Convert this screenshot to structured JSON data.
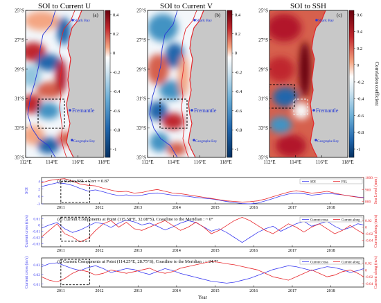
{
  "maps": {
    "titles": [
      "SOI to Current U",
      "SOI to Current V",
      "SOI to SSH"
    ],
    "panel_letters": [
      "(a)",
      "(b)",
      "(c)"
    ],
    "lat_ticks": [
      "25°S",
      "27°S",
      "29°S",
      "31°S",
      "33°S",
      "35°S"
    ],
    "lon_ticks": [
      "112°E",
      "114°E",
      "116°E",
      "118°E"
    ],
    "places": {
      "shark_bay": "Shark Bay",
      "fremantle": "Fremantle",
      "geographe_bay": "Geographe Bay"
    },
    "colorbar_ticks_uv": [
      "0.4",
      "0.2",
      "0",
      "-0.2",
      "-0.4",
      "-0.6",
      "-0.8",
      "-1"
    ],
    "colorbar_ticks_ssh": [
      "0.6",
      "0.4",
      "0.2",
      "0",
      "-0.2",
      "-0.4",
      "-0.6",
      "-0.8",
      "-1"
    ],
    "colorbar_label": "Correlation coefficient",
    "colors": {
      "positive": "#a50f15",
      "negative": "#08519c",
      "land": "#c8c8c8",
      "coast": "#e3262b",
      "isobath": "#2b3ad6"
    }
  },
  "chart_data": [
    {
      "type": "line",
      "panel": "(d)",
      "title": "(d)  SOI to FSL : Corr = 0.87",
      "ylabel": "SOI",
      "y2label": "Sea Level (mm)",
      "ylim": [
        -2,
        5
      ],
      "yticks": [
        -2,
        0,
        2,
        4
      ],
      "y2lim": [
        780,
        1000
      ],
      "y2ticks": [
        800,
        900,
        1000
      ],
      "x_ticks": [
        "2011",
        "2012",
        "2013",
        "2014",
        "2015",
        "2016",
        "2017",
        "2018"
      ],
      "xlim": [
        2010.5,
        2018.85
      ],
      "series": [
        {
          "name": "SOI",
          "color": "#3a3af0",
          "x": [
            2010.5,
            2010.7,
            2010.9,
            2011.1,
            2011.3,
            2011.5,
            2011.7,
            2011.9,
            2012.1,
            2012.3,
            2012.5,
            2012.7,
            2012.9,
            2013.1,
            2013.3,
            2013.5,
            2013.7,
            2013.9,
            2014.1,
            2014.3,
            2014.5,
            2014.7,
            2014.9,
            2015.1,
            2015.3,
            2015.5,
            2015.7,
            2015.9,
            2016.1,
            2016.3,
            2016.5,
            2016.7,
            2016.9,
            2017.1,
            2017.3,
            2017.5,
            2017.7,
            2017.9,
            2018.1,
            2018.3,
            2018.5,
            2018.7,
            2018.85
          ],
          "values": [
            2.6,
            3.1,
            3.6,
            3.4,
            2.9,
            2.1,
            1.4,
            1.7,
            1.2,
            0.6,
            0.2,
            0.4,
            0.1,
            0.3,
            0.7,
            0.9,
            0.6,
            0.3,
            0.1,
            0.0,
            -0.3,
            -0.5,
            -0.7,
            -1.0,
            -1.4,
            -1.7,
            -1.9,
            -2.0,
            -1.8,
            -1.2,
            -0.6,
            0.1,
            0.6,
            0.9,
            0.7,
            0.3,
            0.5,
            0.8,
            0.6,
            0.4,
            0.1,
            -0.2,
            -0.3
          ]
        },
        {
          "name": "FSL",
          "color": "#e8262b",
          "x": [
            2010.5,
            2010.7,
            2010.9,
            2011.1,
            2011.3,
            2011.5,
            2011.7,
            2011.9,
            2012.1,
            2012.3,
            2012.5,
            2012.7,
            2012.9,
            2013.1,
            2013.3,
            2013.5,
            2013.7,
            2013.9,
            2014.1,
            2014.3,
            2014.5,
            2014.7,
            2014.9,
            2015.1,
            2015.3,
            2015.5,
            2015.7,
            2015.9,
            2016.1,
            2016.3,
            2016.5,
            2016.7,
            2016.9,
            2017.1,
            2017.3,
            2017.5,
            2017.7,
            2017.9,
            2018.1,
            2018.3,
            2018.5,
            2018.7,
            2018.85
          ],
          "values": [
            955,
            975,
            985,
            990,
            970,
            945,
            935,
            930,
            910,
            895,
            880,
            885,
            870,
            875,
            890,
            900,
            885,
            870,
            865,
            855,
            845,
            835,
            825,
            815,
            805,
            800,
            795,
            798,
            805,
            820,
            840,
            860,
            878,
            890,
            880,
            870,
            875,
            885,
            870,
            855,
            845,
            835,
            830
          ]
        }
      ]
    },
    {
      "type": "line",
      "panel": "(e)",
      "title": "(e)  Current Components at Point (115.58°E, 32.08°S), Coastline to the Meridian : ~ 0°",
      "ylabel": "Current cross (m/s)",
      "y2label": "Current along (m/s)",
      "ylim": [
        -0.035,
        0.015
      ],
      "yticks": [
        -0.03,
        -0.02,
        -0.01,
        0,
        0.01
      ],
      "y2lim": [
        -0.06,
        0.035
      ],
      "y2ticks": [
        -0.04,
        -0.02,
        0,
        0.02
      ],
      "x_ticks": [
        "2011",
        "2012",
        "2013",
        "2014",
        "2015",
        "2016",
        "2017",
        "2018"
      ],
      "xlim": [
        2010.5,
        2018.85
      ],
      "series": [
        {
          "name": "Current cross",
          "color": "#3a3af0",
          "x": [
            2010.5,
            2010.7,
            2010.9,
            2011.1,
            2011.3,
            2011.5,
            2011.7,
            2011.9,
            2012.1,
            2012.3,
            2012.5,
            2012.7,
            2012.9,
            2013.1,
            2013.3,
            2013.5,
            2013.7,
            2013.9,
            2014.1,
            2014.3,
            2014.5,
            2014.7,
            2014.9,
            2015.1,
            2015.3,
            2015.5,
            2015.7,
            2015.9,
            2016.1,
            2016.3,
            2016.5,
            2016.7,
            2016.9,
            2017.1,
            2017.3,
            2017.5,
            2017.7,
            2017.9,
            2018.1,
            2018.3,
            2018.5,
            2018.7,
            2018.85
          ],
          "values": [
            -0.005,
            0.0,
            0.004,
            -0.006,
            -0.012,
            -0.008,
            -0.002,
            0.004,
            0.002,
            -0.004,
            0.003,
            0.008,
            0.005,
            0.0,
            0.003,
            -0.002,
            -0.008,
            -0.003,
            0.003,
            0.007,
            0.004,
            -0.003,
            -0.01,
            -0.006,
            -0.012,
            -0.02,
            -0.028,
            -0.02,
            -0.012,
            -0.006,
            -0.002,
            -0.01,
            -0.004,
            0.002,
            0.006,
            -0.002,
            0.002,
            0.006,
            -0.002,
            -0.008,
            -0.004,
            0.002,
            0.0
          ]
        },
        {
          "name": "Current along",
          "color": "#e8262b",
          "x": [
            2010.5,
            2010.7,
            2010.9,
            2011.1,
            2011.3,
            2011.5,
            2011.7,
            2011.9,
            2012.1,
            2012.3,
            2012.5,
            2012.7,
            2012.9,
            2013.1,
            2013.3,
            2013.5,
            2013.7,
            2013.9,
            2014.1,
            2014.3,
            2014.5,
            2014.7,
            2014.9,
            2015.1,
            2015.3,
            2015.5,
            2015.7,
            2015.9,
            2016.1,
            2016.3,
            2016.5,
            2016.7,
            2016.9,
            2017.1,
            2017.3,
            2017.5,
            2017.7,
            2017.9,
            2018.1,
            2018.3,
            2018.5,
            2018.7,
            2018.85
          ],
          "values": [
            -0.03,
            -0.01,
            0.01,
            -0.02,
            -0.03,
            -0.045,
            -0.035,
            -0.01,
            0.01,
            0.02,
            0.0,
            0.015,
            -0.005,
            -0.01,
            0.0,
            0.01,
            0.02,
            0.005,
            -0.01,
            0.0,
            0.015,
            0.0,
            -0.02,
            -0.01,
            0.005,
            0.02,
            0.03,
            0.02,
            0.005,
            -0.01,
            -0.02,
            -0.005,
            0.01,
            0.0,
            -0.015,
            0.0,
            0.01,
            -0.005,
            -0.02,
            -0.01,
            0.005,
            -0.01,
            -0.02
          ]
        }
      ]
    },
    {
      "type": "line",
      "panel": "(f)",
      "title": "(f)  Current Components at Point (114.25°E, 28.75°S), Coastline to the Meridian : ~ 24.7°",
      "ylabel": "Current cross (m/s)",
      "y2label": "Current along (m/s)",
      "xlabel": "Year",
      "ylim": [
        0.007,
        0.037
      ],
      "yticks": [
        0.01,
        0.02,
        0.03
      ],
      "y2lim": [
        -0.05,
        0.035
      ],
      "y2ticks": [
        -0.04,
        -0.02,
        0,
        0.02
      ],
      "x_ticks": [
        "2011",
        "2012",
        "2013",
        "2014",
        "2015",
        "2016",
        "2017",
        "2018"
      ],
      "xlim": [
        2010.5,
        2018.85
      ],
      "series": [
        {
          "name": "Current cross",
          "color": "#3a3af0",
          "x": [
            2010.5,
            2010.7,
            2010.9,
            2011.1,
            2011.3,
            2011.5,
            2011.7,
            2011.9,
            2012.1,
            2012.3,
            2012.5,
            2012.7,
            2012.9,
            2013.1,
            2013.3,
            2013.5,
            2013.7,
            2013.9,
            2014.1,
            2014.3,
            2014.5,
            2014.7,
            2014.9,
            2015.1,
            2015.3,
            2015.5,
            2015.7,
            2015.9,
            2016.1,
            2016.3,
            2016.5,
            2016.7,
            2016.9,
            2017.1,
            2017.3,
            2017.5,
            2017.7,
            2017.9,
            2018.1,
            2018.3,
            2018.5,
            2018.7,
            2018.85
          ],
          "values": [
            0.028,
            0.031,
            0.032,
            0.029,
            0.026,
            0.024,
            0.027,
            0.029,
            0.026,
            0.022,
            0.024,
            0.026,
            0.025,
            0.022,
            0.02,
            0.023,
            0.026,
            0.024,
            0.021,
            0.019,
            0.017,
            0.015,
            0.013,
            0.012,
            0.011,
            0.012,
            0.014,
            0.016,
            0.019,
            0.022,
            0.025,
            0.027,
            0.029,
            0.028,
            0.026,
            0.024,
            0.026,
            0.028,
            0.027,
            0.025,
            0.022,
            0.024,
            0.026
          ]
        },
        {
          "name": "Current along",
          "color": "#e8262b",
          "x": [
            2010.5,
            2010.7,
            2010.9,
            2011.1,
            2011.3,
            2011.5,
            2011.7,
            2011.9,
            2012.1,
            2012.3,
            2012.5,
            2012.7,
            2012.9,
            2013.1,
            2013.3,
            2013.5,
            2013.7,
            2013.9,
            2014.1,
            2014.3,
            2014.5,
            2014.7,
            2014.9,
            2015.1,
            2015.3,
            2015.5,
            2015.7,
            2015.9,
            2016.1,
            2016.3,
            2016.5,
            2016.7,
            2016.9,
            2017.1,
            2017.3,
            2017.5,
            2017.7,
            2017.9,
            2018.1,
            2018.3,
            2018.5,
            2018.7,
            2018.85
          ],
          "values": [
            -0.02,
            -0.03,
            -0.035,
            -0.025,
            -0.01,
            0.0,
            -0.005,
            -0.015,
            -0.01,
            0.0,
            -0.005,
            -0.01,
            -0.005,
            0.0,
            0.005,
            -0.005,
            -0.01,
            -0.005,
            0.005,
            0.01,
            0.015,
            0.02,
            0.025,
            0.022,
            0.018,
            0.015,
            0.01,
            0.005,
            0.0,
            -0.01,
            -0.02,
            -0.025,
            -0.03,
            -0.02,
            -0.01,
            0.0,
            -0.01,
            -0.02,
            -0.015,
            -0.005,
            0.0,
            -0.01,
            -0.02
          ]
        }
      ]
    }
  ]
}
